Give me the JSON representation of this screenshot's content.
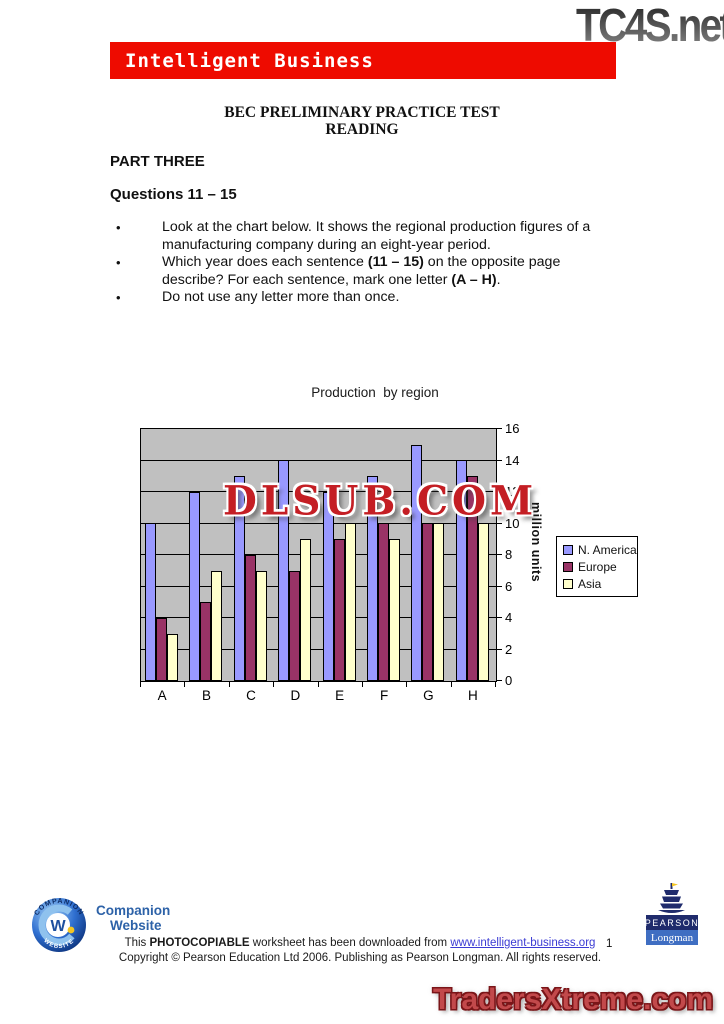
{
  "watermarks": {
    "top_right": "TC4S.net",
    "chart_overlay": "DLSUB.COM",
    "bottom": "TradersXtreme.com"
  },
  "banner": {
    "title": "Intelligent Business",
    "bg_color": "#ee0b00"
  },
  "doc": {
    "title_line1": "BEC PRELIMINARY PRACTICE TEST",
    "title_line2": "READING",
    "part_heading": "PART THREE",
    "questions_heading": "Questions 11 – 15",
    "bullet_glyph": "•",
    "bullets": [
      {
        "parts": [
          {
            "text": "Look at the chart below. It shows the regional production figures of a manufacturing company during an eight-year period.",
            "bold": false
          }
        ]
      },
      {
        "parts": [
          {
            "text": "Which year does each sentence ",
            "bold": false
          },
          {
            "text": "(11 – 15)",
            "bold": true
          },
          {
            "text": " on the opposite page describe? For each sentence, mark one letter ",
            "bold": false
          },
          {
            "text": "(A – H)",
            "bold": true
          },
          {
            "text": ".",
            "bold": false
          }
        ]
      },
      {
        "parts": [
          {
            "text": "Do not use any letter more than once.",
            "bold": false
          }
        ]
      }
    ]
  },
  "chart_data": {
    "type": "bar",
    "title": "Production  by region",
    "categories": [
      "A",
      "B",
      "C",
      "D",
      "E",
      "F",
      "G",
      "H"
    ],
    "series": [
      {
        "name": "N. America",
        "color": "#9999ff",
        "values": [
          10,
          12,
          13,
          14,
          12,
          13,
          15,
          14
        ]
      },
      {
        "name": "Europe",
        "color": "#993366",
        "values": [
          4,
          5,
          8,
          7,
          9,
          10,
          10,
          13
        ]
      },
      {
        "name": "Asia",
        "color": "#ffffcc",
        "values": [
          3,
          7,
          7,
          9,
          10,
          9,
          10,
          10
        ]
      }
    ],
    "xlabel": "",
    "ylabel": "million units",
    "ylim": [
      0,
      16
    ],
    "yticks": [
      0,
      2,
      4,
      6,
      8,
      10,
      12,
      14,
      16
    ],
    "grid": true,
    "plot_bg": "#c0c0c0",
    "axis_side": "right",
    "legend_position": "right"
  },
  "footer": {
    "line1": {
      "pre": "This ",
      "bold": "PHOTOCOPIABLE",
      "mid": " worksheet has been downloaded from ",
      "link": "www.intelligent-business.org"
    },
    "line2": "Copyright © Pearson Education Ltd 2006. Publishing as Pearson Longman. All rights reserved.",
    "page_number": "1",
    "companion": {
      "arc_top": "COMPANION",
      "arc_bottom": "WEBSITE",
      "center_letter": "W",
      "label_line1": "Companion",
      "label_line2": "Website"
    },
    "pearson": {
      "brand": "PEARSON",
      "imprint": "Longman"
    }
  }
}
